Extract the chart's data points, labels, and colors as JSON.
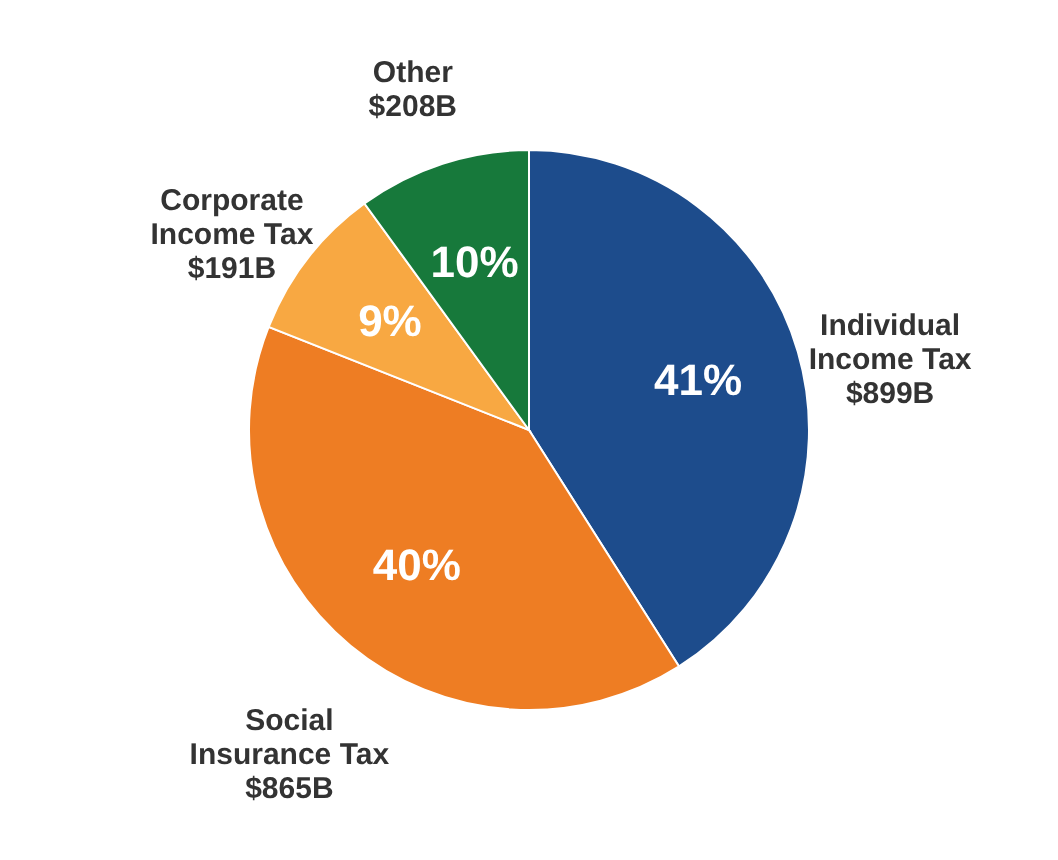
{
  "chart_data": {
    "type": "pie",
    "categories": [
      "Individual\nIncome Tax\n$899B",
      "Social\nInsurance Tax\n$865B",
      "Corporate\nIncome Tax\n$191B",
      "Other\n$208B"
    ],
    "values": [
      41,
      40,
      9,
      10
    ],
    "colors": [
      "#1d4c8c",
      "#ee7d23",
      "#f8a842",
      "#17793b"
    ],
    "value_labels": [
      "41%",
      "40%",
      "9%",
      "10%"
    ]
  }
}
